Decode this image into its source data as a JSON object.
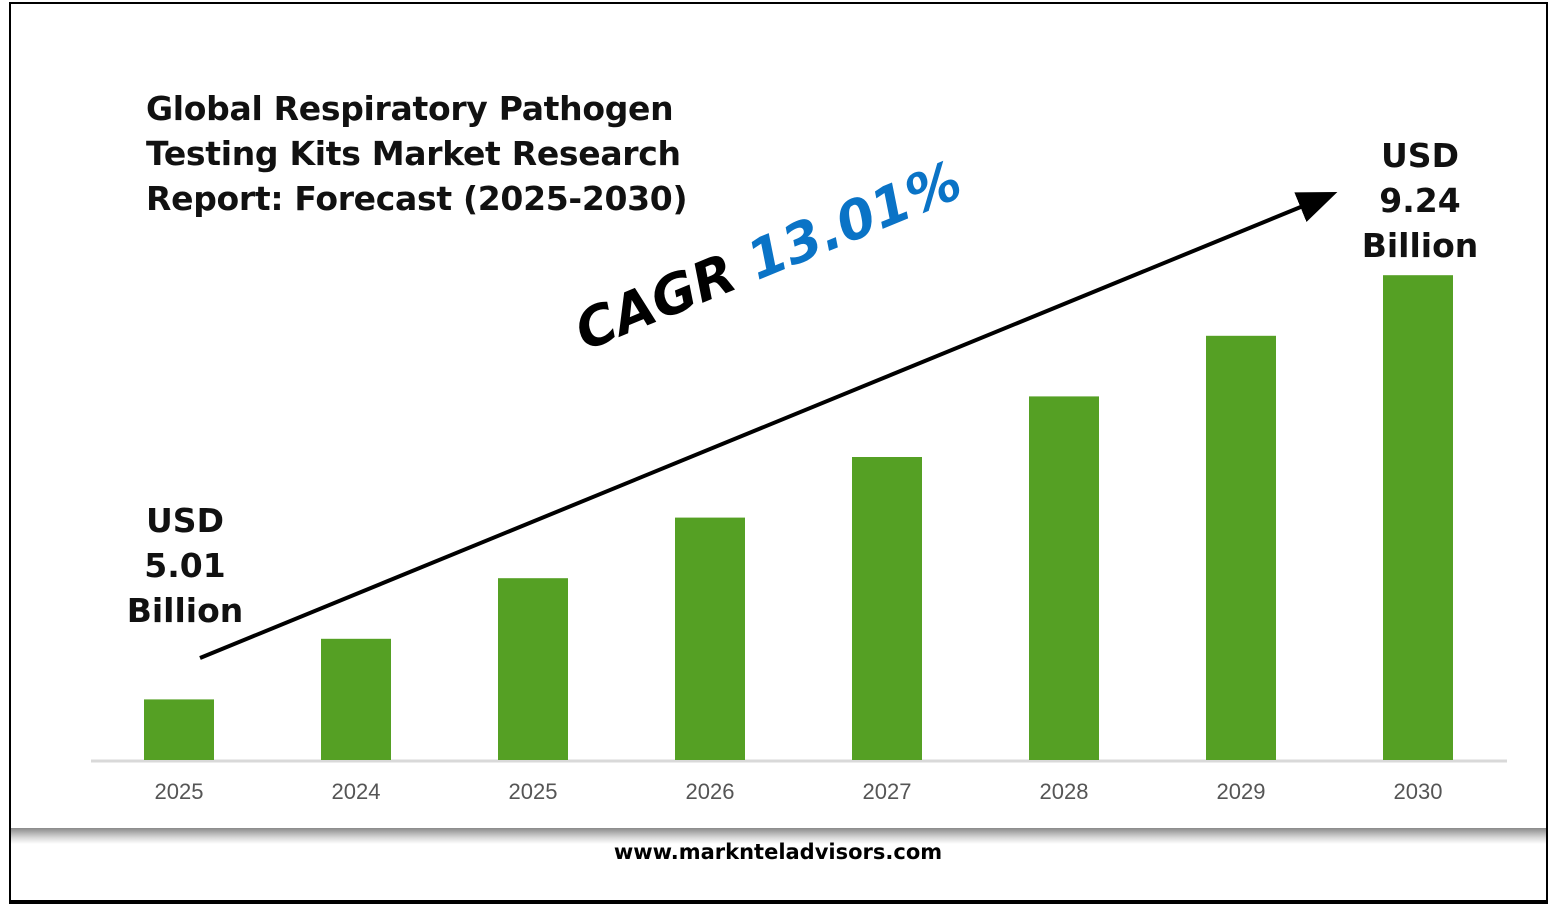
{
  "chart_data": {
    "type": "bar",
    "title": "Global Respiratory Pathogen Testing Kits Market Research Report: Forecast (2025-2030)",
    "title_lines": [
      "Global Respiratory Pathogen",
      "Testing Kits Market Research",
      "Report: Forecast (2025-2030)"
    ],
    "categories": [
      "2025",
      "2024",
      "2025",
      "2026",
      "2027",
      "2028",
      "2029",
      "2030"
    ],
    "relative_values": [
      1,
      2,
      3,
      4,
      5,
      6,
      7,
      8
    ],
    "bar_color": "#55a024",
    "start_label": [
      "USD",
      "5.01",
      "Billion"
    ],
    "end_label": [
      "USD",
      "9.24",
      "Billion"
    ],
    "cagr_label": "CAGR",
    "cagr_value": "13.01%",
    "cagr_color": "#0a73c6",
    "xlabel": "",
    "ylabel": "",
    "grid": false
  },
  "footer": "www.marknteladvisors.com"
}
